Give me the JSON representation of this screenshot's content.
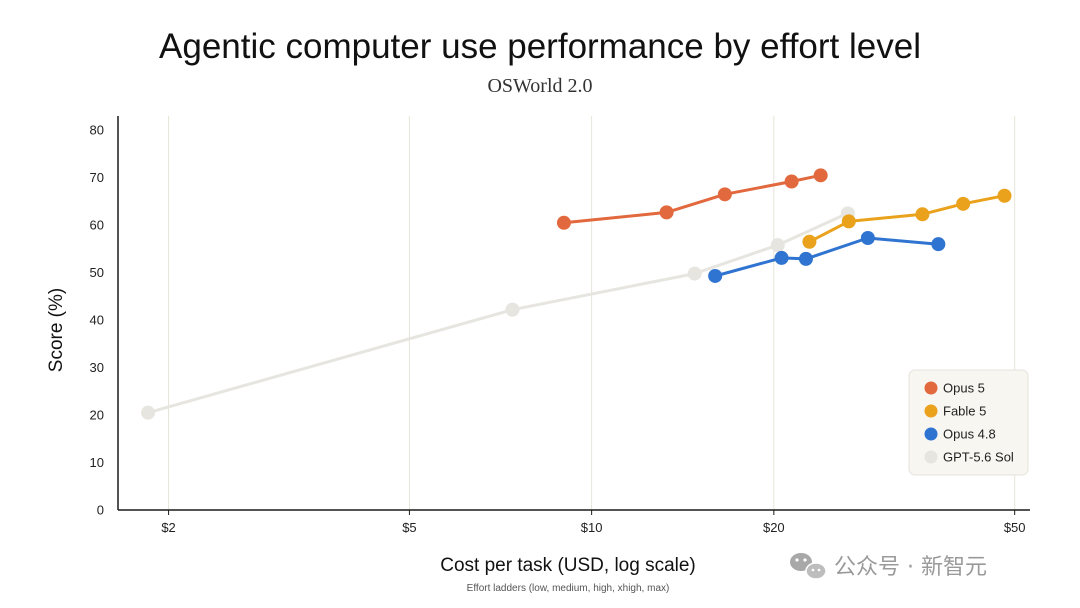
{
  "chart_data": {
    "type": "line",
    "title": "Agentic computer use performance by effort level",
    "subtitle": "OSWorld 2.0",
    "xlabel": "Cost per task (USD, log scale)",
    "xcaption": "Effort ladders (low, medium, high, xhigh, max)",
    "ylabel": "Score (%)",
    "xscale": "log",
    "xlim": [
      1.65,
      53
    ],
    "ylim": [
      0,
      83
    ],
    "xticks": [
      2,
      5,
      10,
      20,
      50
    ],
    "xtick_labels": [
      "$2",
      "$5",
      "$10",
      "$20",
      "$50"
    ],
    "yticks": [
      0,
      10,
      20,
      30,
      40,
      50,
      60,
      70,
      80
    ],
    "ytick_labels": [
      "0",
      "10",
      "20",
      "30",
      "40",
      "50",
      "60",
      "70",
      "80"
    ],
    "grid": "vertical",
    "legend_position": "bottom-right",
    "series": [
      {
        "name": "GPT-5.6 Sol",
        "color": "#e6e5df",
        "points": [
          [
            1.85,
            20.5
          ],
          [
            7.4,
            42.2
          ],
          [
            14.8,
            49.8
          ],
          [
            20.3,
            55.8
          ],
          [
            26.5,
            62.5
          ]
        ]
      },
      {
        "name": "Opus 5",
        "color": "#e2693d",
        "points": [
          [
            9.0,
            60.5
          ],
          [
            13.3,
            62.7
          ],
          [
            16.6,
            66.5
          ],
          [
            21.4,
            69.2
          ],
          [
            23.9,
            70.5
          ]
        ]
      },
      {
        "name": "Fable 5",
        "color": "#eaa21c",
        "points": [
          [
            22.9,
            56.5
          ],
          [
            26.6,
            60.8
          ],
          [
            35.2,
            62.3
          ],
          [
            41.1,
            64.5
          ],
          [
            48.1,
            66.2
          ]
        ]
      },
      {
        "name": "Opus 4.8",
        "color": "#2f74d0",
        "points": [
          [
            16.0,
            49.3
          ],
          [
            20.6,
            53.1
          ],
          [
            22.6,
            52.9
          ],
          [
            28.6,
            57.3
          ],
          [
            37.4,
            56.0
          ]
        ]
      }
    ],
    "legend_order": [
      "Opus 5",
      "Fable 5",
      "Opus 4.8",
      "GPT-5.6 Sol"
    ]
  },
  "watermark": {
    "text": "公众号 · 新智元",
    "icon": "wechat-icon"
  },
  "colors": {
    "axis": "#1a1a1a",
    "grid": "#e7e5d8",
    "legend_bg": "#f7f6f1",
    "legend_border": "#e5e3da"
  }
}
